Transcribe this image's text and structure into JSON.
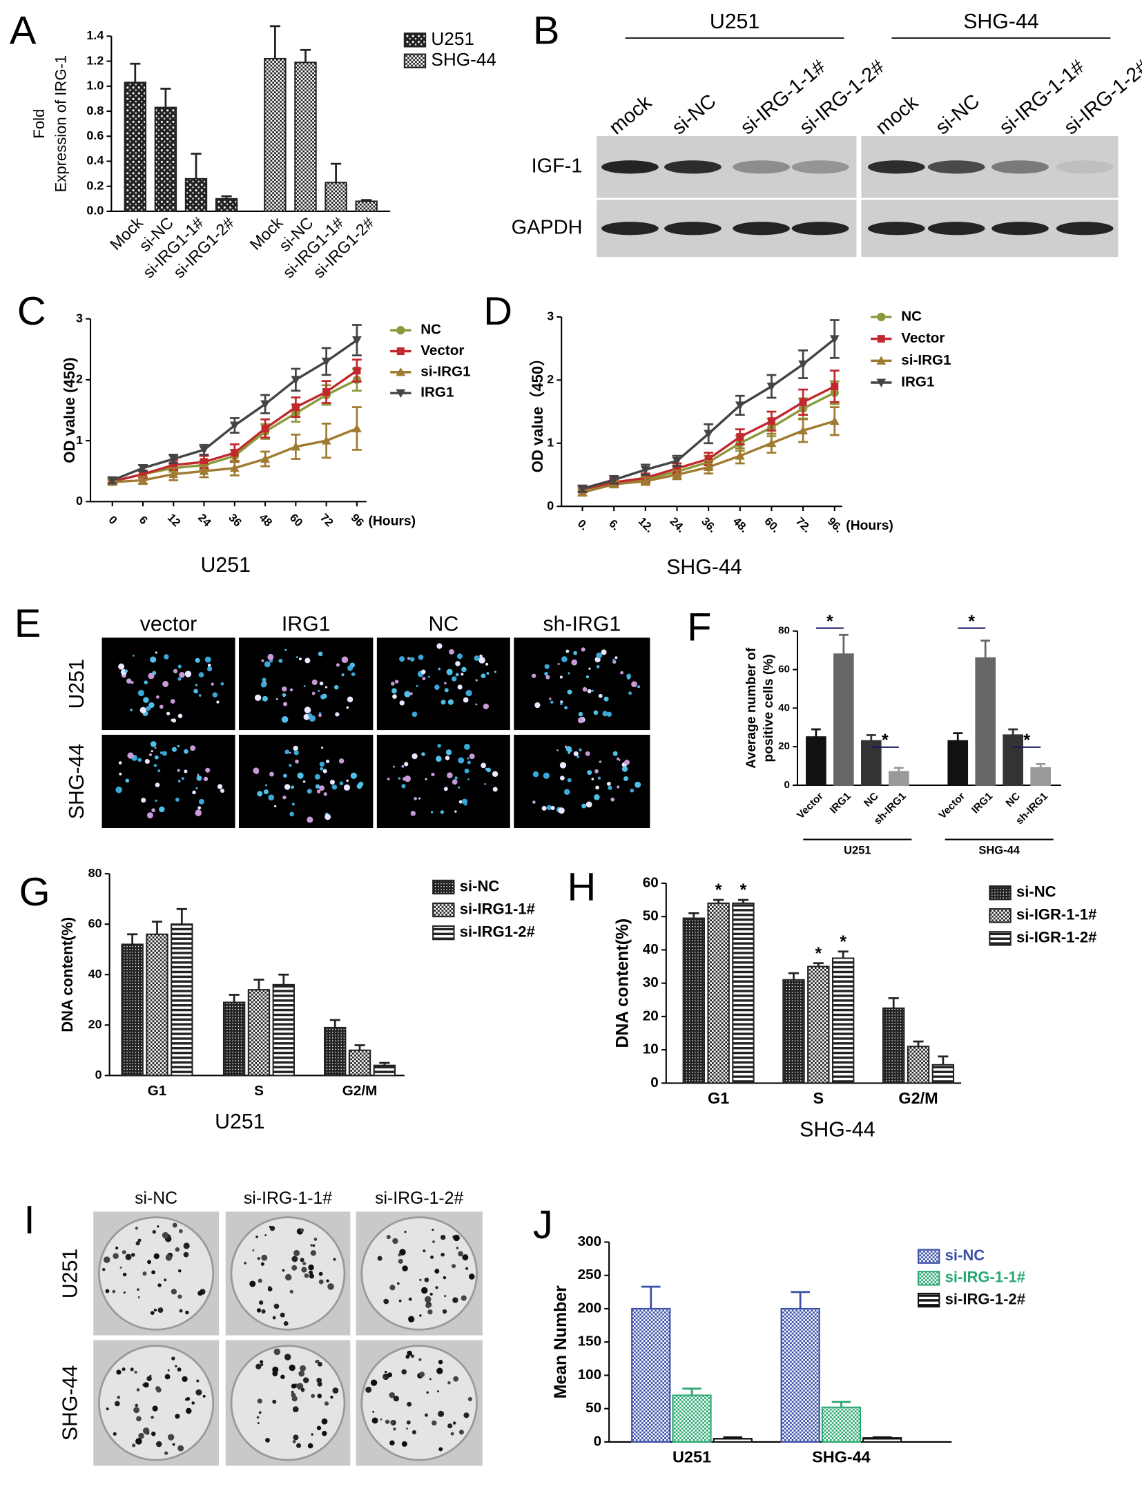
{
  "chart_data": [
    {
      "panel": "A",
      "type": "bar",
      "cluster": "series",
      "ylabel": [
        "Fold",
        "Expression of IRG-1"
      ],
      "categories": [
        "Mock",
        "si-NC",
        "si-IRG1-1#",
        "si-IRG1-2#"
      ],
      "series": [
        {
          "name": "U251",
          "pattern": "check",
          "color": "#222222",
          "values": [
            1.03,
            0.83,
            0.26,
            0.1
          ],
          "errors": [
            0.15,
            0.15,
            0.2,
            0.02
          ]
        },
        {
          "name": "SHG-44",
          "pattern": "checker",
          "color": "#222222",
          "values": [
            1.22,
            1.19,
            0.23,
            0.08
          ],
          "errors": [
            0.26,
            0.1,
            0.15,
            0.01
          ]
        }
      ],
      "ylim": [
        0,
        1.4
      ],
      "yticks": [
        {
          "value": 0,
          "label": "0.0"
        },
        0.2,
        0.4,
        0.6,
        0.8,
        {
          "value": 1,
          "label": "1.0"
        },
        1.2,
        1.4
      ]
    },
    {
      "panel": "C",
      "type": "line",
      "categories": [
        "0",
        "6",
        "12",
        "24",
        "36",
        "48",
        "60",
        "72",
        "96"
      ],
      "xlabel": "(Hours)",
      "ylabel": [
        "OD value (450)"
      ],
      "caption": "U251",
      "ylim": [
        0,
        3
      ],
      "yticks": [
        0,
        1,
        2,
        3
      ],
      "series": [
        {
          "name": "NC",
          "color": "#8a9a3a",
          "marker": "o",
          "values": [
            0.33,
            0.45,
            0.55,
            0.6,
            0.75,
            1.15,
            1.45,
            1.75,
            2.0
          ],
          "errors": [
            0.04,
            0.05,
            0.06,
            0.08,
            0.1,
            0.12,
            0.14,
            0.16,
            0.18
          ]
        },
        {
          "name": "Vector",
          "color": "#c0282d",
          "marker": "s",
          "values": [
            0.33,
            0.45,
            0.6,
            0.65,
            0.8,
            1.2,
            1.55,
            1.8,
            2.15
          ],
          "errors": [
            0.04,
            0.06,
            0.08,
            0.1,
            0.14,
            0.15,
            0.16,
            0.18,
            0.18
          ]
        },
        {
          "name": "si-IRG1",
          "color": "#a07a30",
          "marker": "^",
          "values": [
            0.32,
            0.35,
            0.45,
            0.5,
            0.55,
            0.7,
            0.9,
            1.0,
            1.2
          ],
          "errors": [
            0.04,
            0.06,
            0.1,
            0.1,
            0.12,
            0.12,
            0.2,
            0.28,
            0.35
          ]
        },
        {
          "name": "IRG1",
          "color": "#444444",
          "marker": "v",
          "values": [
            0.35,
            0.55,
            0.7,
            0.85,
            1.25,
            1.6,
            2.0,
            2.3,
            2.65
          ],
          "errors": [
            0.05,
            0.05,
            0.07,
            0.08,
            0.12,
            0.15,
            0.18,
            0.22,
            0.25
          ]
        }
      ]
    },
    {
      "panel": "D",
      "type": "line",
      "categories": [
        "0.",
        "6.",
        "12.",
        "24.",
        "36.",
        "48.",
        "60.",
        "72.",
        "96."
      ],
      "xlabel": "(Hours)",
      "ylabel": [
        "OD value（450）"
      ],
      "caption": "SHG-44",
      "ylim": [
        0,
        3
      ],
      "yticks": [
        0,
        1,
        2,
        3
      ],
      "series": [
        {
          "name": "NC",
          "color": "#8a9a3a",
          "marker": "o",
          "values": [
            0.27,
            0.36,
            0.43,
            0.55,
            0.7,
            1.0,
            1.25,
            1.55,
            1.8
          ],
          "errors": [
            0.04,
            0.05,
            0.06,
            0.07,
            0.1,
            0.12,
            0.14,
            0.16,
            0.18
          ]
        },
        {
          "name": "Vector",
          "color": "#c0282d",
          "marker": "s",
          "values": [
            0.27,
            0.38,
            0.45,
            0.6,
            0.75,
            1.1,
            1.35,
            1.65,
            1.9
          ],
          "errors": [
            0.05,
            0.06,
            0.07,
            0.08,
            0.1,
            0.12,
            0.15,
            0.2,
            0.25
          ]
        },
        {
          "name": "si-IRG1",
          "color": "#a07a30",
          "marker": "^",
          "values": [
            0.22,
            0.35,
            0.4,
            0.5,
            0.62,
            0.8,
            1.0,
            1.2,
            1.35
          ],
          "errors": [
            0.05,
            0.05,
            0.06,
            0.07,
            0.1,
            0.12,
            0.15,
            0.18,
            0.22
          ]
        },
        {
          "name": "IRG1",
          "color": "#444444",
          "marker": "v",
          "values": [
            0.28,
            0.42,
            0.58,
            0.72,
            1.15,
            1.6,
            1.9,
            2.25,
            2.65
          ],
          "errors": [
            0.05,
            0.06,
            0.08,
            0.08,
            0.15,
            0.15,
            0.18,
            0.22,
            0.3
          ]
        }
      ]
    },
    {
      "panel": "F",
      "type": "bar",
      "cluster": "series",
      "ylabel": [
        "Average number of",
        "positive cells (%)"
      ],
      "categories": [
        "Vector",
        "IRG1",
        "NC",
        "sh-IRG1"
      ],
      "colors": [
        "#111111",
        "#666666",
        "#333333",
        "#999999"
      ],
      "series": [
        {
          "name": "U251",
          "values": [
            25,
            68,
            23,
            7
          ],
          "errors": [
            4,
            10,
            3,
            2
          ]
        },
        {
          "name": "SHG-44",
          "values": [
            23,
            66,
            26,
            9
          ],
          "errors": [
            4,
            9,
            3,
            2
          ]
        }
      ],
      "ylim": [
        0,
        80
      ],
      "yticks": [
        0,
        20,
        40,
        60,
        80
      ],
      "annotations": [
        "*",
        "*",
        "*",
        "*"
      ]
    },
    {
      "panel": "G",
      "type": "bar",
      "ylabel": [
        "DNA content(%)"
      ],
      "caption": "U251",
      "categories": [
        "G1",
        "S",
        "G2/M"
      ],
      "series": [
        {
          "name": "si-NC",
          "pattern": "dense",
          "color": "#222222",
          "values": [
            52,
            29,
            19
          ],
          "errors": [
            4,
            3,
            3
          ]
        },
        {
          "name": "si-IRG1-1#",
          "pattern": "checker",
          "color": "#222222",
          "values": [
            56,
            34,
            10
          ],
          "errors": [
            5,
            4,
            2
          ]
        },
        {
          "name": "si-IRG1-2#",
          "pattern": "hstripe",
          "color": "#222222",
          "values": [
            60,
            36,
            4
          ],
          "errors": [
            6,
            4,
            1
          ]
        }
      ],
      "ylim": [
        0,
        80
      ],
      "yticks": [
        0,
        20,
        40,
        60,
        80
      ]
    },
    {
      "panel": "H",
      "type": "bar",
      "ylabel": [
        "DNA content(%)"
      ],
      "caption": "SHG-44",
      "categories": [
        "G1",
        "S",
        "G2/M"
      ],
      "series": [
        {
          "name": "si-NC",
          "pattern": "dense",
          "color": "#222222",
          "values": [
            49.5,
            31,
            22.5
          ],
          "errors": [
            1.5,
            2,
            3
          ]
        },
        {
          "name": "si-IGR-1-1#",
          "pattern": "checker",
          "color": "#222222",
          "values": [
            54,
            35,
            11
          ],
          "errors": [
            1,
            1,
            1.5
          ]
        },
        {
          "name": "si-IGR-1-2#",
          "pattern": "hstripe",
          "color": "#222222",
          "values": [
            54,
            37.5,
            5.5
          ],
          "errors": [
            1,
            2,
            2.5
          ]
        }
      ],
      "ylim": [
        0,
        60
      ],
      "yticks": [
        0,
        10,
        20,
        30,
        40,
        50,
        60
      ],
      "annotations": [
        "*",
        "*",
        "*",
        "*"
      ]
    },
    {
      "panel": "J",
      "type": "bar",
      "ylabel": [
        "Mean Number"
      ],
      "categories": [
        "U251",
        "SHG-44"
      ],
      "series": [
        {
          "name": "si-NC",
          "pattern": "checker",
          "color": "#3a4fa8",
          "values": [
            200,
            200
          ],
          "errors": [
            33,
            25
          ]
        },
        {
          "name": "si-IRG-1-1#",
          "pattern": "checker",
          "color": "#2aa870",
          "values": [
            70,
            52
          ],
          "errors": [
            10,
            8
          ]
        },
        {
          "name": "si-IRG-1-2#",
          "pattern": "hstripe",
          "color": "#111111",
          "values": [
            5,
            6
          ],
          "errors": [
            2,
            1
          ]
        }
      ],
      "ylim": [
        0,
        300
      ],
      "yticks": [
        0,
        50,
        100,
        150,
        200,
        250,
        300
      ]
    }
  ],
  "images": [
    {
      "panel": "B",
      "groups": [
        "U251",
        "SHG-44"
      ],
      "lanes": [
        "mock",
        "si-NC",
        "si-IRG-1-1#",
        "si-IRG-1-2#"
      ],
      "rows": [
        "IGF-1",
        "GAPDH"
      ]
    },
    {
      "panel": "E",
      "columns": [
        "vector",
        "IRG1",
        "NC",
        "sh-IRG1"
      ],
      "rows": [
        "U251",
        "SHG-44"
      ]
    },
    {
      "panel": "I",
      "columns": [
        "si-NC",
        "si-IRG-1-1#",
        "si-IRG-1-2#"
      ],
      "rows": [
        "U251",
        "SHG-44"
      ]
    }
  ]
}
